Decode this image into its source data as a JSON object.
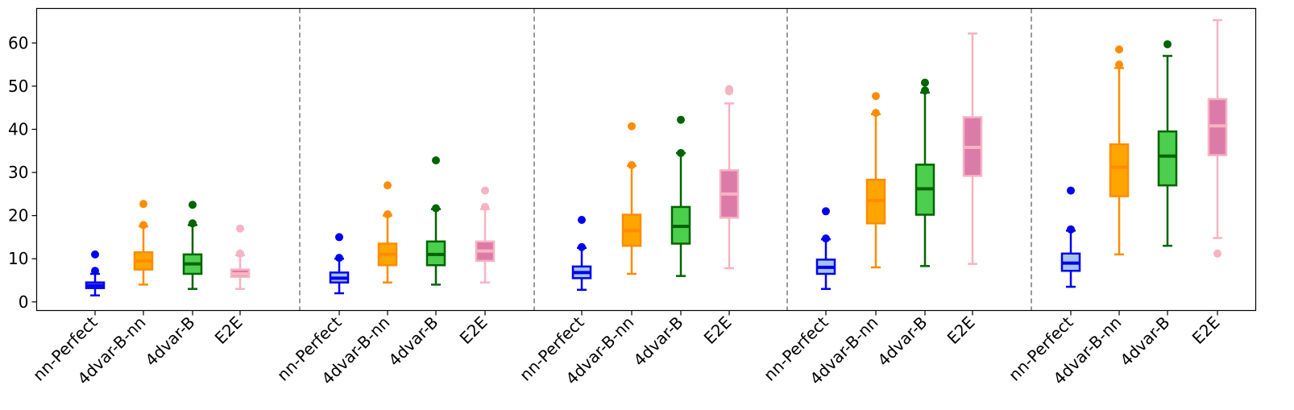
{
  "chart_data": {
    "type": "box",
    "title": "",
    "xlabel": "",
    "ylabel": "",
    "ylim": [
      -2,
      68
    ],
    "yticks": [
      0,
      10,
      20,
      30,
      40,
      50,
      60
    ],
    "grid": false,
    "group_separators": "dashed gray vertical lines between groups",
    "categories": [
      "nn-Perfect",
      "4dvar-B-nn",
      "4dvar-B",
      "E2E"
    ],
    "series_styles": [
      {
        "category": "nn-Perfect",
        "edge": "#0000ee",
        "fill": "#a9c4ea",
        "median": "#0000ee"
      },
      {
        "category": "4dvar-B-nn",
        "edge": "#ff8c00",
        "fill": "#ffa500",
        "median": "#ff8c00"
      },
      {
        "category": "4dvar-B",
        "edge": "#006400",
        "fill": "#4ccf4c",
        "median": "#006400"
      },
      {
        "category": "E2E",
        "edge": "#f7b3c2",
        "fill": "#dc7ba8",
        "median": "#f7b3c2"
      }
    ],
    "groups": [
      {
        "boxes": [
          {
            "category": "nn-Perfect",
            "whislo": 1.5,
            "q1": 3.2,
            "med": 3.8,
            "q3": 4.5,
            "whishi": 6.5,
            "fliers": [
              7.2,
              11.0
            ]
          },
          {
            "category": "4dvar-B-nn",
            "whislo": 4.0,
            "q1": 7.5,
            "med": 9.5,
            "q3": 11.5,
            "whishi": 17.5,
            "fliers": [
              17.8,
              22.7
            ]
          },
          {
            "category": "4dvar-B",
            "whislo": 3.0,
            "q1": 6.5,
            "med": 8.8,
            "q3": 11.0,
            "whishi": 17.8,
            "fliers": [
              18.2,
              22.5
            ]
          },
          {
            "category": "E2E",
            "whislo": 3.0,
            "q1": 5.8,
            "med": 6.5,
            "q3": 7.5,
            "whishi": 10.8,
            "fliers": [
              11.2,
              17.0
            ]
          }
        ]
      },
      {
        "boxes": [
          {
            "category": "nn-Perfect",
            "whislo": 2.0,
            "q1": 4.5,
            "med": 5.5,
            "q3": 6.8,
            "whishi": 10.0,
            "fliers": [
              10.2,
              15.0
            ]
          },
          {
            "category": "4dvar-B-nn",
            "whislo": 4.5,
            "q1": 8.5,
            "med": 11.0,
            "q3": 13.5,
            "whishi": 20.0,
            "fliers": [
              20.3,
              27.0
            ]
          },
          {
            "category": "4dvar-B",
            "whislo": 4.0,
            "q1": 8.5,
            "med": 11.0,
            "q3": 14.0,
            "whishi": 21.5,
            "fliers": [
              21.7,
              32.8
            ]
          },
          {
            "category": "E2E",
            "whislo": 4.5,
            "q1": 9.5,
            "med": 11.8,
            "q3": 14.0,
            "whishi": 21.5,
            "fliers": [
              22.0,
              25.8
            ]
          }
        ]
      },
      {
        "boxes": [
          {
            "category": "nn-Perfect",
            "whislo": 2.8,
            "q1": 5.5,
            "med": 6.8,
            "q3": 8.2,
            "whishi": 12.5,
            "fliers": [
              12.7,
              19.0
            ]
          },
          {
            "category": "4dvar-B-nn",
            "whislo": 6.5,
            "q1": 13.0,
            "med": 16.5,
            "q3": 20.2,
            "whishi": 31.5,
            "fliers": [
              31.7,
              40.7
            ]
          },
          {
            "category": "4dvar-B",
            "whislo": 6.0,
            "q1": 13.5,
            "med": 17.5,
            "q3": 22.0,
            "whishi": 34.5,
            "fliers": [
              34.5,
              42.2
            ]
          },
          {
            "category": "E2E",
            "whislo": 7.8,
            "q1": 19.5,
            "med": 25.0,
            "q3": 30.5,
            "whishi": 46.0,
            "fliers": [
              48.8,
              49.3
            ]
          }
        ]
      },
      {
        "boxes": [
          {
            "category": "nn-Perfect",
            "whislo": 3.0,
            "q1": 6.5,
            "med": 8.0,
            "q3": 9.8,
            "whishi": 14.5,
            "fliers": [
              14.7,
              21.0
            ]
          },
          {
            "category": "4dvar-B-nn",
            "whislo": 8.0,
            "q1": 18.2,
            "med": 23.5,
            "q3": 28.3,
            "whishi": 43.5,
            "fliers": [
              43.8,
              47.7
            ]
          },
          {
            "category": "4dvar-B",
            "whislo": 8.3,
            "q1": 20.2,
            "med": 26.2,
            "q3": 31.8,
            "whishi": 48.5,
            "fliers": [
              49.0,
              50.8
            ]
          },
          {
            "category": "E2E",
            "whislo": 8.8,
            "q1": 29.2,
            "med": 35.8,
            "q3": 42.8,
            "whishi": 62.2,
            "fliers": []
          }
        ]
      },
      {
        "boxes": [
          {
            "category": "nn-Perfect",
            "whislo": 3.5,
            "q1": 7.2,
            "med": 9.0,
            "q3": 11.2,
            "whishi": 16.5,
            "fliers": [
              16.8,
              25.8
            ]
          },
          {
            "category": "4dvar-B-nn",
            "whislo": 11.0,
            "q1": 24.5,
            "med": 31.2,
            "q3": 36.5,
            "whishi": 54.2,
            "fliers": [
              55.0,
              58.5
            ]
          },
          {
            "category": "4dvar-B",
            "whislo": 13.0,
            "q1": 27.0,
            "med": 33.8,
            "q3": 39.5,
            "whishi": 57.0,
            "fliers": [
              59.7
            ]
          },
          {
            "category": "E2E",
            "whislo": 14.8,
            "q1": 34.0,
            "med": 40.8,
            "q3": 47.0,
            "whishi": 65.3,
            "fliers": [
              11.2
            ]
          }
        ]
      }
    ]
  }
}
